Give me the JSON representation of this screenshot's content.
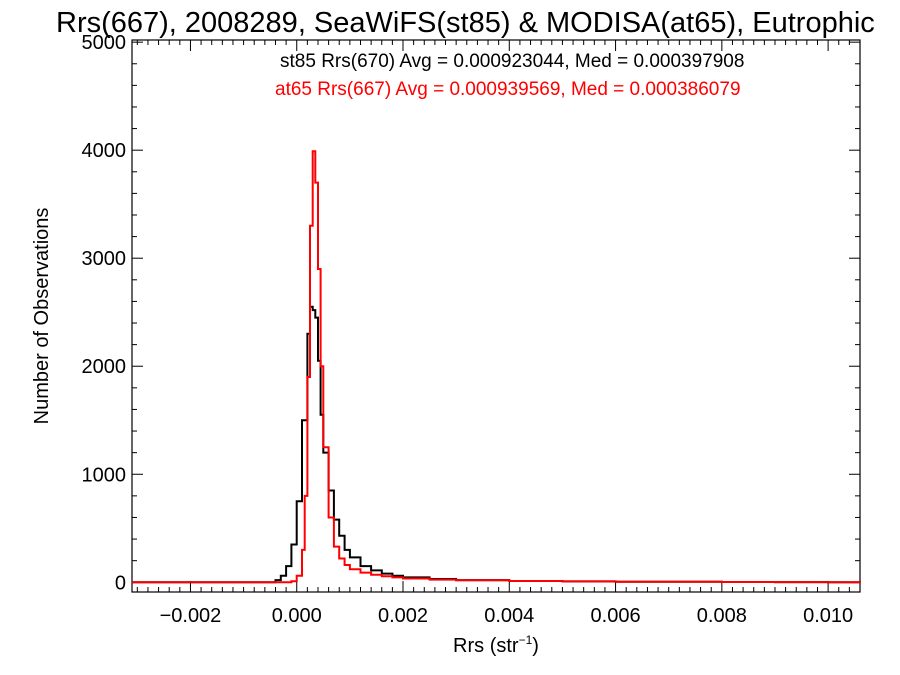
{
  "chart_data": {
    "type": "line",
    "title": "Rrs(667), 2008289, SeaWiFS(st85) & MODISA(at65), Eutrophic",
    "xlabel_main": "Rrs (str",
    "xlabel_sup": "−1",
    "xlabel_close": ")",
    "ylabel": "Number of Observations",
    "xlim": [
      -0.0031,
      0.0106
    ],
    "ylim": [
      -90,
      5020
    ],
    "xticks": [
      {
        "value": -0.002,
        "label": "−0.002"
      },
      {
        "value": 0.0,
        "label": "0.000"
      },
      {
        "value": 0.002,
        "label": "0.002"
      },
      {
        "value": 0.004,
        "label": "0.004"
      },
      {
        "value": 0.006,
        "label": "0.006"
      },
      {
        "value": 0.008,
        "label": "0.008"
      },
      {
        "value": 0.01,
        "label": "0.010"
      }
    ],
    "yticks": [
      {
        "value": 0,
        "label": "0"
      },
      {
        "value": 1000,
        "label": "1000"
      },
      {
        "value": 2000,
        "label": "2000"
      },
      {
        "value": 3000,
        "label": "3000"
      },
      {
        "value": 4000,
        "label": "4000"
      },
      {
        "value": 5000,
        "label": "5000"
      }
    ],
    "annotations": [
      {
        "text": "st85 Rrs(670) Avg = 0.000923044, Med = 0.000397908",
        "color": "#000000"
      },
      {
        "text": "at65 Rrs(667) Avg = 0.000939569, Med = 0.000386079",
        "color": "#ff0000"
      }
    ],
    "series": [
      {
        "color": "#000000",
        "x": [
          -0.0031,
          -0.0006,
          -0.0004,
          -0.0003,
          -0.0002,
          -0.0001,
          0.0,
          0.0001,
          0.0002,
          0.00025,
          0.0003,
          0.00035,
          0.0004,
          0.00045,
          0.0005,
          0.0006,
          0.0007,
          0.0008,
          0.0009,
          0.001,
          0.0012,
          0.0014,
          0.0016,
          0.0018,
          0.002,
          0.0025,
          0.003,
          0.004,
          0.005,
          0.006,
          0.007,
          0.008,
          0.009,
          0.01,
          0.0106
        ],
        "y": [
          0,
          0,
          20,
          60,
          150,
          350,
          750,
          1500,
          2300,
          2550,
          2520,
          2450,
          2050,
          1550,
          1200,
          850,
          580,
          430,
          300,
          230,
          150,
          110,
          80,
          60,
          45,
          30,
          20,
          12,
          8,
          5,
          4,
          3,
          2,
          1,
          0
        ]
      },
      {
        "color": "#ff0000",
        "x": [
          -0.0031,
          -0.0002,
          -0.0001,
          0.0,
          0.0001,
          0.00015,
          0.0002,
          0.00025,
          0.0003,
          0.00035,
          0.0004,
          0.00045,
          0.0005,
          0.0006,
          0.0007,
          0.0008,
          0.0009,
          0.001,
          0.0012,
          0.0014,
          0.0016,
          0.0018,
          0.002,
          0.0025,
          0.003,
          0.004,
          0.005,
          0.006,
          0.007,
          0.008,
          0.009,
          0.01,
          0.0106
        ],
        "y": [
          0,
          0,
          10,
          60,
          300,
          800,
          1900,
          3300,
          3990,
          3700,
          2900,
          2000,
          1250,
          600,
          330,
          220,
          160,
          120,
          90,
          70,
          55,
          45,
          35,
          25,
          18,
          12,
          8,
          5,
          4,
          3,
          2,
          1,
          0
        ]
      }
    ]
  }
}
